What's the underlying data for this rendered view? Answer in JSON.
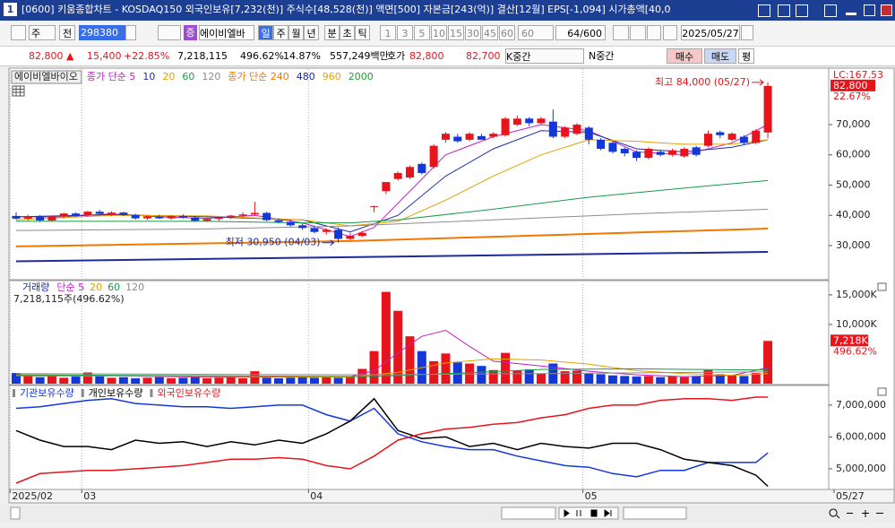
{
  "window": {
    "icon": "1",
    "title": "[0600] 키움종합차트 - KOSDAQ150 외국인보유[7,232(천)] 주식수[48,528(천)] 액면[500] 자본금[243(억)] 결산[12월] EPS[-1,094] 시가총액[40,0",
    "toolbar": {
      "type": "주",
      "scope": "전",
      "code": "298380",
      "market_badge": "증",
      "name": "에이비엘바",
      "periods": [
        "일",
        "주",
        "월",
        "년",
        "분",
        "초",
        "틱"
      ],
      "intervals": [
        "1",
        "3",
        "5",
        "10",
        "15",
        "30",
        "45",
        "60"
      ],
      "interval_select": "60",
      "count": "64/600",
      "date": "2025/05/27"
    },
    "info": {
      "price": "82,800",
      "arrow": "▲",
      "change": "15,400",
      "rate": "+22.85%",
      "volume": "7,218,115",
      "vol_rate": "496.62%",
      "turnover": "14.87%",
      "amount": "557,249백만",
      "quote_label": "호가",
      "ask": "82,800",
      "bid": "82,700",
      "k": "K중간",
      "n": "N중간",
      "buy": "매수",
      "sell": "매도",
      "avg": "평"
    }
  },
  "chart_data": [
    {
      "type": "candlestick",
      "title": "에이비엘바이오",
      "open": [
        39800,
        38900,
        39700,
        38300,
        39800,
        40600,
        39900,
        41200,
        40500,
        40900,
        40100,
        39000,
        39600,
        39000,
        39800,
        39300,
        38200,
        38800,
        39300,
        39900,
        40300,
        40800,
        38400,
        37800,
        36700,
        35800,
        34500,
        35200,
        32200,
        33200,
        43000,
        48000,
        52000,
        52500,
        57000,
        56000,
        65000,
        66000,
        65000,
        66200,
        66000,
        66500,
        70000,
        72000,
        70500,
        71000,
        66000,
        67000,
        69000,
        65000,
        64000,
        62000,
        61000,
        59000,
        61000,
        60000,
        59500,
        62500,
        63000,
        67500,
        65000,
        66000,
        64000,
        67400
      ],
      "high": [
        41000,
        40200,
        40100,
        40000,
        40800,
        41000,
        41500,
        41800,
        41300,
        41200,
        40500,
        40000,
        40200,
        40000,
        40300,
        39800,
        39200,
        39500,
        40200,
        41000,
        44500,
        41200,
        38900,
        38400,
        37400,
        36400,
        35700,
        36000,
        34200,
        34800,
        43200,
        51000,
        54500,
        56500,
        57500,
        63500,
        67500,
        67000,
        67500,
        67000,
        67500,
        72500,
        73000,
        72500,
        72500,
        75000,
        69500,
        70500,
        69500,
        65500,
        64500,
        62500,
        61500,
        62500,
        61500,
        62000,
        62500,
        63000,
        68000,
        68000,
        67500,
        66500,
        68500,
        84000
      ],
      "low": [
        38500,
        38200,
        37800,
        38000,
        39000,
        39500,
        39500,
        40300,
        39800,
        39800,
        38600,
        38500,
        38800,
        38500,
        39000,
        37900,
        37800,
        38200,
        38800,
        39300,
        40000,
        38000,
        37400,
        36300,
        35200,
        34000,
        33600,
        30950,
        31800,
        32800,
        41000,
        47000,
        51500,
        52000,
        53500,
        55500,
        64000,
        64000,
        64500,
        65000,
        65500,
        66000,
        69500,
        69500,
        70000,
        65500,
        65500,
        66500,
        63500,
        61500,
        60500,
        59500,
        58000,
        58500,
        59500,
        59500,
        59000,
        59500,
        62500,
        65500,
        64500,
        63500,
        63500,
        65500
      ],
      "close": [
        38900,
        39700,
        38300,
        39800,
        40600,
        39900,
        41200,
        40500,
        40900,
        40100,
        39000,
        39600,
        39000,
        39800,
        39300,
        38200,
        38800,
        39300,
        39900,
        40300,
        40800,
        38400,
        37800,
        36700,
        35800,
        34500,
        35200,
        32200,
        33200,
        34200,
        43000,
        51000,
        54000,
        56000,
        54000,
        63000,
        67000,
        64500,
        67000,
        65000,
        67000,
        72000,
        72000,
        70500,
        72000,
        66000,
        69000,
        70000,
        65000,
        62000,
        61000,
        60500,
        59000,
        62000,
        60000,
        61500,
        62000,
        60000,
        67000,
        66500,
        67000,
        64000,
        68000,
        82800
      ],
      "up_color": "#e8141b",
      "down_color": "#1438d8",
      "ylim": [
        19300,
        87800
      ],
      "yticks": [
        {
          "value": 30000,
          "label": "30,000"
        },
        {
          "value": 40000,
          "label": "40,000"
        },
        {
          "value": 50000,
          "label": "50,000"
        },
        {
          "value": 60000,
          "label": "60,000"
        },
        {
          "value": 70000,
          "label": "70,000"
        }
      ],
      "series": [
        {
          "name": "종가 단순 5",
          "color": "#c21fc2",
          "x": [
            0,
            4,
            8,
            12,
            16,
            20,
            24,
            28,
            30,
            32,
            34,
            36,
            40,
            44,
            48,
            52,
            56,
            60,
            63
          ],
          "values": [
            39500,
            39500,
            40500,
            39500,
            39000,
            40000,
            37500,
            33000,
            36000,
            44000,
            52000,
            60000,
            66000,
            70000,
            68000,
            61000,
            60000,
            64000,
            70000
          ]
        },
        {
          "name": "10",
          "color": "#1f2fa8",
          "x": [
            0,
            8,
            16,
            24,
            28,
            32,
            36,
            40,
            44,
            48,
            52,
            56,
            60,
            63
          ],
          "values": [
            39500,
            40200,
            39500,
            38500,
            34500,
            40000,
            53000,
            62000,
            68000,
            67500,
            62000,
            61000,
            62500,
            65000
          ]
        },
        {
          "name": "20",
          "color": "#e3a100",
          "x": [
            0,
            8,
            16,
            24,
            28,
            32,
            36,
            40,
            44,
            48,
            52,
            56,
            60,
            63
          ],
          "values": [
            38500,
            40000,
            39800,
            38500,
            36500,
            38000,
            45000,
            53000,
            60000,
            65000,
            64500,
            63500,
            63500,
            65000
          ]
        },
        {
          "name": "60",
          "color": "#1a9a48",
          "x": [
            0,
            16,
            24,
            28,
            32,
            40,
            48,
            56,
            63
          ],
          "values": [
            38000,
            38000,
            37500,
            37500,
            38500,
            42000,
            46000,
            49000,
            51500
          ]
        },
        {
          "name": "120",
          "color": "#8c8c8c",
          "x": [
            0,
            16,
            28,
            40,
            52,
            63
          ],
          "values": [
            35000,
            35500,
            36500,
            38500,
            40500,
            42000
          ]
        },
        {
          "name": "종가 단순 240",
          "color": "#f07800",
          "x": [
            0,
            28,
            63
          ],
          "values": [
            29700,
            31500,
            35600
          ]
        },
        {
          "name": "480",
          "color": "#1c2a9c",
          "x": [
            0,
            63
          ],
          "values": [
            24800,
            27900
          ]
        },
        {
          "name": "960",
          "color": "#e0a800",
          "x": [],
          "values": []
        },
        {
          "name": "2000",
          "color": "#22a030",
          "x": [],
          "values": []
        }
      ],
      "annotations": [
        {
          "text": "최고 84,000 (05/27)",
          "x": 63,
          "y": 84000,
          "color": "#e8141b"
        },
        {
          "text": "최저 30,950 (04/03)",
          "x": 27,
          "y": 30950,
          "color": "#1c2a9c"
        }
      ],
      "lc_label": "LC:167.53",
      "last_label": "82,800",
      "change_label": "22.67%"
    },
    {
      "type": "bar",
      "title": "거래량",
      "subtitle": "7,218,115주(496.62%)",
      "values": [
        1800,
        1500,
        1100,
        1300,
        1000,
        1200,
        1900,
        1300,
        1000,
        1100,
        900,
        1000,
        1100,
        900,
        1000,
        1200,
        900,
        1000,
        1100,
        900,
        2100,
        1000,
        900,
        1000,
        1100,
        1000,
        1200,
        1000,
        1300,
        2500,
        5500,
        15500,
        12300,
        8000,
        5500,
        3800,
        5100,
        3600,
        3400,
        3000,
        2300,
        5200,
        2200,
        2400,
        1700,
        3400,
        2100,
        2200,
        1700,
        1600,
        1400,
        1300,
        1200,
        1300,
        1100,
        1200,
        1100,
        1300,
        2300,
        1600,
        1400,
        1300,
        1800,
        7218
      ],
      "ylim": [
        0,
        16500
      ],
      "yticks": [
        {
          "value": 10000,
          "label": "10,000K"
        },
        {
          "value": 15000,
          "label": "15,000K"
        }
      ],
      "series": [
        {
          "name": "단순 5",
          "color": "#c21fc2",
          "x": [
            0,
            8,
            16,
            24,
            28,
            30,
            32,
            34,
            36,
            38,
            40,
            44,
            48,
            52,
            56,
            60,
            63
          ],
          "values": [
            1300,
            1300,
            1100,
            1100,
            1200,
            2200,
            5200,
            8000,
            9000,
            6300,
            3800,
            3000,
            2100,
            1500,
            1200,
            1400,
            2700
          ]
        },
        {
          "name": "20",
          "color": "#e3a100",
          "x": [
            0,
            20,
            28,
            32,
            36,
            40,
            44,
            48,
            52,
            56,
            60,
            63
          ],
          "values": [
            1400,
            1200,
            1100,
            1900,
            3500,
            4200,
            4000,
            3300,
            2200,
            1700,
            1400,
            1700
          ]
        },
        {
          "name": "60",
          "color": "#1a9a48",
          "x": [
            0,
            30,
            36,
            44,
            52,
            63
          ],
          "values": [
            1500,
            1200,
            1700,
            2400,
            2500,
            2300
          ]
        },
        {
          "name": "120",
          "color": "#8c8c8c",
          "x": [
            0,
            30,
            63
          ],
          "values": [
            1700,
            1500,
            2000
          ]
        }
      ],
      "last_label": "7,218K",
      "ratio_label": "496.62%"
    },
    {
      "type": "line",
      "x": [
        0,
        2,
        4,
        6,
        8,
        10,
        12,
        14,
        16,
        18,
        20,
        22,
        24,
        26,
        28,
        30,
        32,
        34,
        36,
        38,
        40,
        42,
        44,
        46,
        48,
        50,
        52,
        54,
        56,
        58,
        60,
        62,
        63
      ],
      "xlim": [
        -0.6,
        68.1
      ],
      "xticks": [
        {
          "value": 0,
          "label": "2025/02"
        },
        {
          "value": 6,
          "label": "03"
        },
        {
          "value": 25,
          "label": "04"
        },
        {
          "value": 48,
          "label": "05"
        },
        {
          "value": 63,
          "label": "05/27"
        }
      ],
      "ylim": [
        4380000,
        7560000
      ],
      "yticks": [
        {
          "value": 5000000,
          "label": "5,000,000"
        },
        {
          "value": 6000000,
          "label": "6,000,000"
        },
        {
          "value": 7000000,
          "label": "7,000,000"
        }
      ],
      "series": [
        {
          "name": "기관보유수량",
          "color": "#1438d8",
          "values": [
            6900000,
            6950000,
            7050000,
            7150000,
            7200000,
            7050000,
            7000000,
            6950000,
            6950000,
            6900000,
            6950000,
            7000000,
            7000000,
            6700000,
            6500000,
            6900000,
            6100000,
            5850000,
            5700000,
            5600000,
            5600000,
            5400000,
            5250000,
            5100000,
            5050000,
            4850000,
            4750000,
            4950000,
            4950000,
            5200000,
            5200000,
            5200000,
            5500000
          ]
        },
        {
          "name": "개인보유수량",
          "color": "#000000",
          "values": [
            6200000,
            5900000,
            5700000,
            5700000,
            5600000,
            5900000,
            5800000,
            5850000,
            5700000,
            5850000,
            5750000,
            5900000,
            5800000,
            6100000,
            6500000,
            7200000,
            6200000,
            5950000,
            6000000,
            5700000,
            5800000,
            5600000,
            5800000,
            5700000,
            5650000,
            5800000,
            5800000,
            5600000,
            5300000,
            5200000,
            5100000,
            4800000,
            4450000
          ]
        },
        {
          "name": "외국인보유수량",
          "color": "#e8141b",
          "values": [
            4550000,
            4850000,
            4900000,
            4950000,
            4950000,
            5000000,
            5050000,
            5100000,
            5200000,
            5300000,
            5300000,
            5350000,
            5300000,
            5100000,
            5000000,
            5400000,
            5900000,
            6100000,
            6250000,
            6300000,
            6400000,
            6450000,
            6600000,
            6700000,
            6900000,
            7000000,
            7000000,
            7150000,
            7200000,
            7200000,
            7150000,
            7250000,
            7250000
          ]
        }
      ]
    }
  ]
}
